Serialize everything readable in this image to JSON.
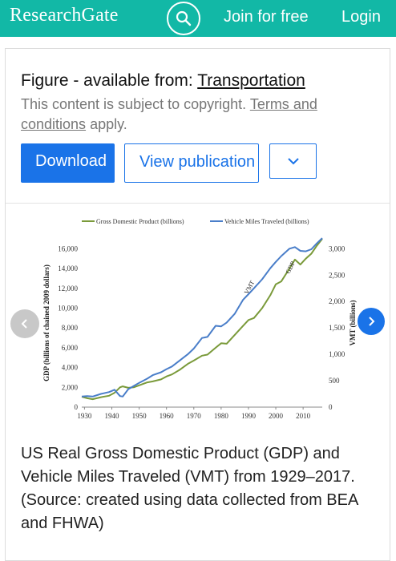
{
  "header": {
    "logo": "ResearchGate",
    "join_label": "Join for free",
    "login_label": "Login"
  },
  "figure": {
    "title_prefix": "Figure - available from: ",
    "title_link": "Transportation",
    "copyright_text": "This content is subject to copyright. ",
    "terms_link": "Terms and conditions",
    "copyright_suffix": " apply.",
    "download_label": "Download",
    "view_label": "View publication",
    "caption": "US Real Gross Domestic Product (GDP) and Vehicle Miles Traveled (VMT) from 1929–2017. (Source: created using data collected from BEA and FHWA)"
  },
  "colors": {
    "brand": "#12b8a6",
    "button_blue": "#1a73e8",
    "gdp_line": "#7a9a3a",
    "vmt_line": "#4a7ec9"
  },
  "icons": {
    "search": "search-icon",
    "more": "chevron-down-icon",
    "prev": "chevron-left-icon",
    "next": "chevron-right-icon"
  },
  "chart_data": {
    "type": "line",
    "title": "",
    "xlabel": "",
    "ylabel_left": "GDP (billions of chained 2009 dollars)",
    "ylabel_right": "VMT (billions)",
    "xlim": [
      1929,
      2017
    ],
    "ylim_left": [
      0,
      17000
    ],
    "ylim_right": [
      0,
      3187
    ],
    "x_ticks": [
      1930,
      1940,
      1950,
      1960,
      1970,
      1980,
      1990,
      2000,
      2010
    ],
    "y_ticks_left": [
      0,
      2000,
      4000,
      6000,
      8000,
      10000,
      12000,
      14000,
      16000
    ],
    "y_ticks_left_labels": [
      "0",
      "2,000",
      "4,000",
      "6,000",
      "8,000",
      "10,000",
      "12,000",
      "14,000",
      "16,000"
    ],
    "y_ticks_right": [
      0,
      500,
      1000,
      1500,
      2000,
      2500,
      3000
    ],
    "y_ticks_right_labels": [
      "0",
      "500",
      "1,000",
      "1,500",
      "2,000",
      "2,500",
      "3,000"
    ],
    "legend": "top",
    "annotations": [
      {
        "text": "VMT",
        "x": 1991,
        "y": 2250,
        "axis": "right"
      },
      {
        "text": "GDP",
        "x": 2006,
        "y": 14000,
        "axis": "left"
      }
    ],
    "series": [
      {
        "name": "Gross Domestic Product (billions)",
        "axis": "left",
        "x": [
          1929,
          1931,
          1933,
          1936,
          1939,
          1941,
          1943,
          1944,
          1946,
          1948,
          1950,
          1953,
          1955,
          1958,
          1960,
          1962,
          1965,
          1968,
          1970,
          1973,
          1975,
          1978,
          1980,
          1982,
          1985,
          1988,
          1990,
          1992,
          1995,
          1998,
          2000,
          2002,
          2005,
          2007,
          2009,
          2011,
          2013,
          2015,
          2017
        ],
        "y": [
          1050,
          900,
          800,
          1000,
          1150,
          1450,
          2000,
          2100,
          1950,
          2000,
          2200,
          2500,
          2600,
          2800,
          3100,
          3300,
          3800,
          4400,
          4700,
          5200,
          5300,
          6000,
          6450,
          6400,
          7300,
          8200,
          8800,
          9000,
          10000,
          11300,
          12400,
          12700,
          14000,
          14900,
          14400,
          15000,
          15500,
          16300,
          17000
        ]
      },
      {
        "name": "Vehicle Miles Traveled (billions)",
        "axis": "right",
        "x": [
          1929,
          1931,
          1933,
          1936,
          1939,
          1941,
          1943,
          1944,
          1946,
          1948,
          1950,
          1953,
          1955,
          1958,
          1960,
          1962,
          1965,
          1968,
          1970,
          1973,
          1975,
          1978,
          1980,
          1982,
          1985,
          1988,
          1990,
          1992,
          1995,
          1998,
          2000,
          2002,
          2005,
          2007,
          2009,
          2011,
          2013,
          2015,
          2017
        ],
        "y": [
          200,
          210,
          200,
          250,
          285,
          330,
          210,
          200,
          340,
          400,
          460,
          540,
          605,
          660,
          720,
          770,
          890,
          1010,
          1110,
          1310,
          1330,
          1540,
          1530,
          1600,
          1770,
          2030,
          2140,
          2250,
          2420,
          2630,
          2750,
          2860,
          3000,
          3030,
          2960,
          2950,
          2990,
          3100,
          3200
        ]
      }
    ]
  }
}
